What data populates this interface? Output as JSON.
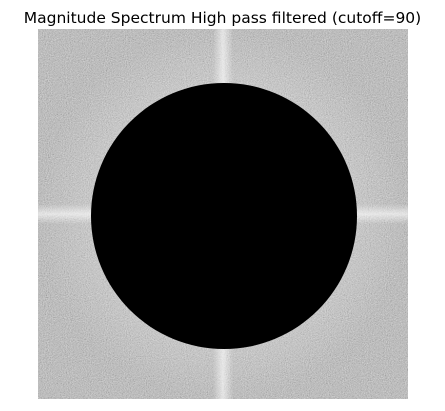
{
  "figure": {
    "title": "Magnitude Spectrum High pass filtered (cutoff=90)",
    "image": {
      "description_semantic": "FFT magnitude spectrum with a central circular region masked to zero",
      "background_color": "#bdbdbd",
      "mask_color": "#000000",
      "cutoff": 90
    }
  }
}
